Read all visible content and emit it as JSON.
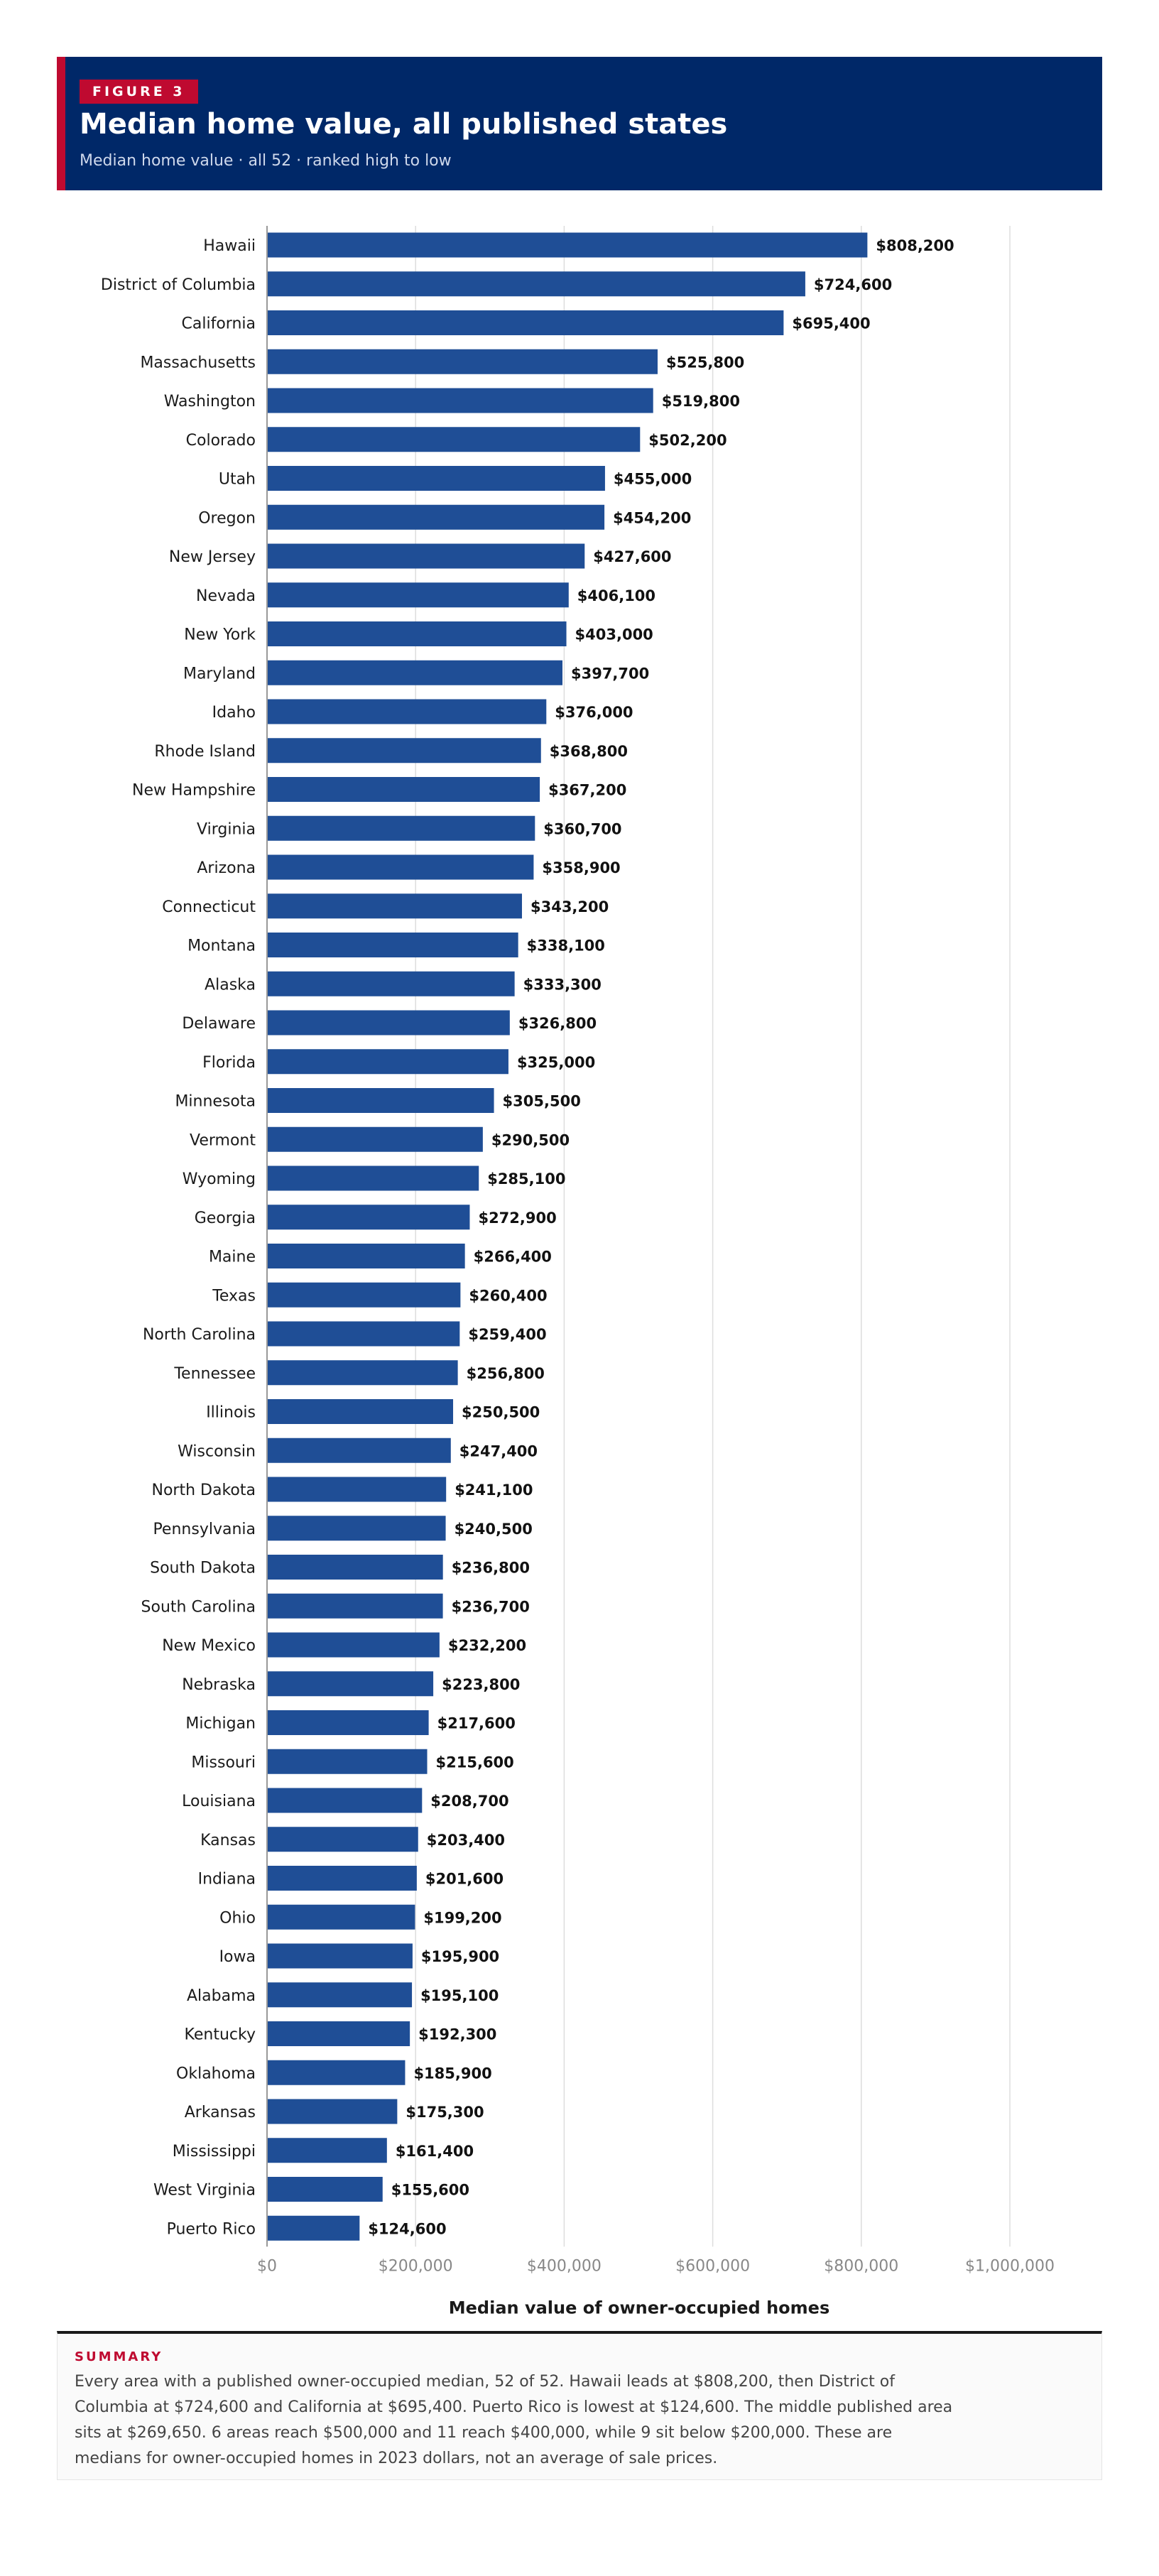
{
  "header": {
    "figure_label": "FIGURE 3",
    "title": "Median home value, all published states",
    "subtitle": "Median home value · all 52 · ranked high to low"
  },
  "summary": {
    "label": "SUMMARY",
    "text": "Every area with a published owner-occupied median, 52 of 52. Hawaii leads at $808,200, then District of Columbia at $724,600 and California at $695,400. Puerto Rico is lowest at $124,600. The middle published area sits at $269,650. 6 areas reach $500,000 and 11 reach $400,000, while 9 sit below $200,000. These are medians for owner-occupied homes in 2023 dollars, not an average of sale prices."
  },
  "colors": {
    "bar": "#1f4e96",
    "header_bg": "#002868",
    "accent": "#bf0a30",
    "grid": "#dddddd",
    "axis_line": "#999999",
    "tick_text": "#888888"
  },
  "chart_data": {
    "type": "bar",
    "orientation": "horizontal",
    "xlabel": "Median value of owner-occupied homes",
    "xlim": [
      0,
      1000000
    ],
    "x_ticks": [
      0,
      200000,
      400000,
      600000,
      800000,
      1000000
    ],
    "x_tick_labels": [
      "$0",
      "$200,000",
      "$400,000",
      "$600,000",
      "$800,000",
      "$1,000,000"
    ],
    "grid": true,
    "categories": [
      "Hawaii",
      "District of Columbia",
      "California",
      "Massachusetts",
      "Washington",
      "Colorado",
      "Utah",
      "Oregon",
      "New Jersey",
      "Nevada",
      "New York",
      "Maryland",
      "Idaho",
      "Rhode Island",
      "New Hampshire",
      "Virginia",
      "Arizona",
      "Connecticut",
      "Montana",
      "Alaska",
      "Delaware",
      "Florida",
      "Minnesota",
      "Vermont",
      "Wyoming",
      "Georgia",
      "Maine",
      "Texas",
      "North Carolina",
      "Tennessee",
      "Illinois",
      "Wisconsin",
      "North Dakota",
      "Pennsylvania",
      "South Dakota",
      "South Carolina",
      "New Mexico",
      "Nebraska",
      "Michigan",
      "Missouri",
      "Louisiana",
      "Kansas",
      "Indiana",
      "Ohio",
      "Iowa",
      "Alabama",
      "Kentucky",
      "Oklahoma",
      "Arkansas",
      "Mississippi",
      "West Virginia",
      "Puerto Rico"
    ],
    "values": [
      808200,
      724600,
      695400,
      525800,
      519800,
      502200,
      455000,
      454200,
      427600,
      406100,
      403000,
      397700,
      376000,
      368800,
      367200,
      360700,
      358900,
      343200,
      338100,
      333300,
      326800,
      325000,
      305500,
      290500,
      285100,
      272900,
      266400,
      260400,
      259400,
      256800,
      250500,
      247400,
      241100,
      240500,
      236800,
      236700,
      232200,
      223800,
      217600,
      215600,
      208700,
      203400,
      201600,
      199200,
      195900,
      195100,
      192300,
      185900,
      175300,
      161400,
      155600,
      124600
    ],
    "value_labels": [
      "$808,200",
      "$724,600",
      "$695,400",
      "$525,800",
      "$519,800",
      "$502,200",
      "$455,000",
      "$454,200",
      "$427,600",
      "$406,100",
      "$403,000",
      "$397,700",
      "$376,000",
      "$368,800",
      "$367,200",
      "$360,700",
      "$358,900",
      "$343,200",
      "$338,100",
      "$333,300",
      "$326,800",
      "$325,000",
      "$305,500",
      "$290,500",
      "$285,100",
      "$272,900",
      "$266,400",
      "$260,400",
      "$259,400",
      "$256,800",
      "$250,500",
      "$247,400",
      "$241,100",
      "$240,500",
      "$236,800",
      "$236,700",
      "$232,200",
      "$223,800",
      "$217,600",
      "$215,600",
      "$208,700",
      "$203,400",
      "$201,600",
      "$199,200",
      "$195,900",
      "$195,100",
      "$192,300",
      "$185,900",
      "$175,300",
      "$161,400",
      "$155,600",
      "$124,600"
    ]
  }
}
